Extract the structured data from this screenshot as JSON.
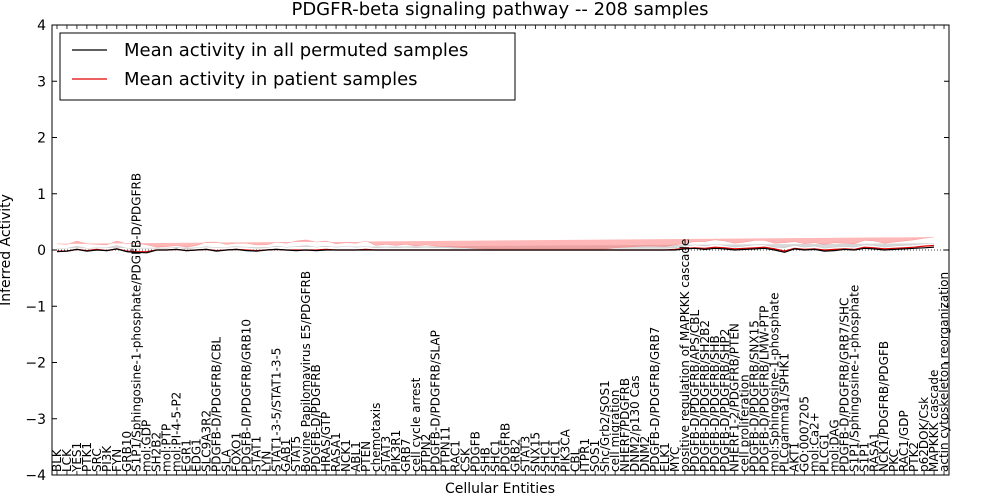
{
  "chart_data": {
    "type": "line",
    "title": "PDGFR-beta signaling pathway -- 208 samples",
    "xlabel": "Cellular Entities",
    "ylabel": "Inferred Activity",
    "ylim": [
      -4,
      4
    ],
    "yticks": [
      "4",
      "3",
      "2",
      "1",
      "0",
      "−1",
      "−2",
      "−3",
      "−4"
    ],
    "ytick_values": [
      4,
      3,
      2,
      1,
      0,
      -1,
      -2,
      -3,
      -4
    ],
    "legend_position": "top-left",
    "series": [
      {
        "name": "Mean activity in all permuted samples",
        "color": "#000000",
        "band_color": "#b0b0b0"
      },
      {
        "name": "Mean activity in patient samples",
        "color": "#e00000",
        "band_color": "#ff7070"
      }
    ],
    "categories": [
      "BLK",
      "LCK",
      "YES1",
      "PTK1",
      "SRC",
      "PI3K",
      "FYN",
      "GRB10",
      "S1P1/Sphingosine-1-phosphate/PDGFB-D/PDGFRB",
      "mol:GDP",
      "SH2B2",
      "mol:PTP",
      "mol:PI-4-5-P2",
      "EGR1",
      "EDG1",
      "SLC9A3R2",
      "PDGFB-D/PDGFRB/CBL",
      "SLA",
      "FOXO1",
      "PDGFB-D/PDGFRB/GRB10",
      "STAT1",
      "LYN",
      "STAT1-3-5/STAT1-3-5",
      "GAB1",
      "STAT5",
      "Bovine Papilomavirus E5/PDGFRB",
      "PDGFB-D/PDGFRB",
      "HRAS/GTP",
      "RASA1",
      "NCK1",
      "ABL1",
      "PTEN",
      "chemotaxis",
      "STAT3",
      "PIK3R1",
      "GRB7",
      "cell cycle arrest",
      "PTPN2",
      "PDGFB-D/PDGFRB/SLAP",
      "PTPN11",
      "RAC1",
      "CSK",
      "PDGFB",
      "SHB",
      "SHC1",
      "PDGFRB",
      "GRB2",
      "STAT3",
      "SNX15",
      "SHC1",
      "SHC1",
      "PIK3CA",
      "CBL",
      "ITPR1",
      "SOS1",
      "Shc/Grb2/SOS1",
      "cell migration",
      "NHERF/PDGFRB",
      "DNM2/p130 Cas",
      "DNM2",
      "PDGFB-D/PDGFRB/GRB7",
      "ELK1",
      "MYC",
      "positive regulation of MAPKKK cascade",
      "PDGFB-D/PDGFRB/APS/CBL",
      "PDGFB-D/PDGFRB/SH2B2",
      "PDGFB-D/PDGFRB/SHB",
      "PDGFB-D/PDGFRB/SHP2",
      "NHERF1-2/PDGFRB/PTEN",
      "cell proliferation",
      "PDGFB-D/PDGFRB/SNX15",
      "PDGFB-D/PDGFRB/LMW-PTP",
      "mol:Sphingosine-1-phosphate",
      "PLCgamma1/SPHK1",
      "AKT1",
      "GO:0007205",
      "mol:Ca2+",
      "PLCG1",
      "mol:DAG",
      "PDGFB-D/PDGFRB/GRB7/SHC",
      "S1P1/Sphingosine-1-phosphate",
      "S1P1",
      "RASA1",
      "NCK1/PDGFRB/PDGFB",
      "PKC",
      "RAC1/GDP",
      "PTK2",
      "p62DOK/Csk",
      "MAPKKK cascade",
      "actin cytoskeleton reorganization"
    ],
    "permuted_mean": [
      -0.03,
      -0.02,
      0.01,
      -0.02,
      0.0,
      -0.01,
      0.02,
      -0.03,
      -0.04,
      -0.05,
      0.0,
      0.0,
      0.01,
      -0.01,
      0.0,
      0.01,
      -0.02,
      0.0,
      0.01,
      -0.01,
      -0.02,
      0.0,
      0.01,
      0.0,
      -0.01,
      0.0,
      -0.01,
      0.0,
      0.0,
      0.0,
      0.0,
      0.0,
      0.0,
      0.0,
      0.0,
      0.0,
      0.0,
      0.0,
      0.0,
      0.0,
      0.0,
      0.0,
      0.0,
      0.0,
      0.0,
      0.0,
      0.0,
      0.0,
      0.0,
      0.0,
      0.0,
      0.0,
      0.0,
      0.0,
      0.0,
      0.0,
      0.0,
      0.0,
      0.0,
      0.0,
      0.0,
      0.0,
      0.0,
      0.02,
      0.03,
      0.01,
      0.03,
      0.02,
      0.0,
      0.01,
      0.02,
      0.03,
      0.0,
      -0.04,
      0.02,
      0.0,
      0.01,
      -0.02,
      -0.01,
      0.01,
      0.0,
      0.03,
      0.02,
      0.0,
      0.01,
      0.02,
      0.03,
      0.04,
      0.05
    ],
    "patient_mean": [
      -0.02,
      -0.02,
      0.01,
      -0.01,
      0.01,
      -0.01,
      0.02,
      -0.02,
      -0.03,
      -0.03,
      0.0,
      0.0,
      0.01,
      -0.01,
      0.0,
      0.01,
      -0.01,
      0.0,
      0.01,
      0.0,
      -0.01,
      0.0,
      0.01,
      0.0,
      0.0,
      0.0,
      0.0,
      0.01,
      0.0,
      0.0,
      0.0,
      0.01,
      0.0,
      0.0,
      0.0,
      0.0,
      0.0,
      0.0,
      0.0,
      0.0,
      0.0,
      0.0,
      0.0,
      0.0,
      0.0,
      0.0,
      0.0,
      0.0,
      0.0,
      0.0,
      0.0,
      0.0,
      0.0,
      0.0,
      0.0,
      0.0,
      0.0,
      0.0,
      0.0,
      0.0,
      0.0,
      0.0,
      0.01,
      0.03,
      0.04,
      0.03,
      0.05,
      0.04,
      0.02,
      0.03,
      0.04,
      0.05,
      0.02,
      -0.02,
      0.03,
      0.01,
      0.02,
      0.0,
      0.01,
      0.02,
      0.01,
      0.05,
      0.04,
      0.02,
      0.03,
      0.04,
      0.05,
      0.07,
      0.08
    ],
    "permuted_spread": [
      0.06,
      0.05,
      0.06,
      0.05,
      0.04,
      0.05,
      0.06,
      0.06,
      0.07,
      0.08,
      0.03,
      0.03,
      0.04,
      0.03,
      0.04,
      0.05,
      0.06,
      0.05,
      0.05,
      0.06,
      0.05,
      0.04,
      0.06,
      0.05,
      0.07,
      0.08,
      0.06,
      0.07,
      0.05,
      0.06,
      0.05,
      0.06,
      0.04,
      0.05,
      0.04,
      0.05,
      0.04,
      0.05,
      0.04,
      0.04,
      0.03,
      0.03,
      0.02,
      0.02,
      0.02,
      0.02,
      0.02,
      0.02,
      0.02,
      0.02,
      0.02,
      0.02,
      0.02,
      0.02,
      0.02,
      0.02,
      0.03,
      0.03,
      0.03,
      0.03,
      0.03,
      0.03,
      0.04,
      0.05,
      0.06,
      0.06,
      0.07,
      0.06,
      0.05,
      0.06,
      0.07,
      0.06,
      0.05,
      0.08,
      0.06,
      0.05,
      0.06,
      0.05,
      0.06,
      0.05,
      0.05,
      0.06,
      0.06,
      0.05,
      0.06,
      0.06,
      0.06,
      0.07,
      0.07
    ],
    "patient_spread": [
      0.13,
      0.12,
      0.15,
      0.12,
      0.09,
      0.1,
      0.14,
      0.13,
      0.15,
      0.12,
      0.05,
      0.06,
      0.07,
      0.06,
      0.08,
      0.13,
      0.15,
      0.1,
      0.11,
      0.12,
      0.1,
      0.09,
      0.13,
      0.12,
      0.16,
      0.18,
      0.14,
      0.15,
      0.11,
      0.13,
      0.12,
      0.15,
      0.08,
      0.1,
      0.08,
      0.1,
      0.07,
      0.09,
      0.07,
      0.06,
      0.05,
      0.04,
      0.03,
      0.02,
      0.02,
      0.02,
      0.02,
      0.02,
      0.02,
      0.02,
      0.02,
      0.02,
      0.02,
      0.02,
      0.02,
      0.02,
      0.04,
      0.05,
      0.06,
      0.07,
      0.07,
      0.06,
      0.08,
      0.09,
      0.11,
      0.12,
      0.13,
      0.12,
      0.1,
      0.11,
      0.13,
      0.12,
      0.1,
      0.15,
      0.12,
      0.1,
      0.11,
      0.1,
      0.12,
      0.1,
      0.1,
      0.12,
      0.12,
      0.1,
      0.11,
      0.12,
      0.13,
      0.14,
      0.15
    ]
  }
}
